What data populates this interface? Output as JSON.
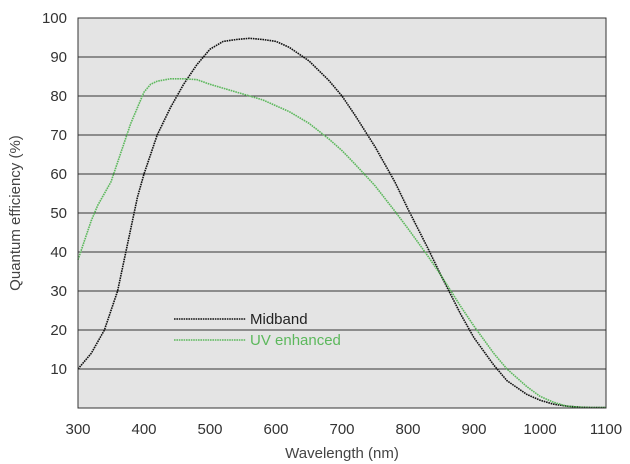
{
  "chart_data": {
    "type": "line",
    "title": "",
    "xlabel": "Wavelength (nm)",
    "ylabel": "Quantum efficiency (%)",
    "xlim": [
      300,
      1100
    ],
    "ylim": [
      0,
      100
    ],
    "x_ticks": [
      300,
      400,
      500,
      600,
      700,
      800,
      900,
      1000,
      1100
    ],
    "y_ticks": [
      10,
      20,
      30,
      40,
      50,
      60,
      70,
      80,
      90,
      100
    ],
    "grid": "horizontal",
    "plot_background": "#e4e4e4",
    "legend_position": "lower-left",
    "series": [
      {
        "name": "Midband",
        "color": "#111111",
        "x": [
          300,
          320,
          340,
          360,
          370,
          380,
          390,
          400,
          410,
          420,
          440,
          460,
          480,
          500,
          520,
          540,
          560,
          580,
          600,
          620,
          650,
          680,
          700,
          720,
          750,
          780,
          800,
          830,
          850,
          880,
          900,
          930,
          950,
          980,
          1000,
          1020,
          1040,
          1060,
          1080,
          1100
        ],
        "y": [
          10,
          14,
          20,
          30,
          38,
          46,
          54,
          60,
          65,
          70,
          77,
          83,
          88,
          92,
          94,
          94.5,
          94.8,
          94.5,
          94,
          92.5,
          89,
          84,
          80,
          75,
          67,
          58,
          51,
          41,
          34,
          24,
          18,
          11,
          7,
          3.5,
          2,
          1,
          0.5,
          0.2,
          0.1,
          0.1
        ]
      },
      {
        "name": "UV enhanced",
        "color": "#5cb85c",
        "x": [
          300,
          310,
          320,
          330,
          340,
          350,
          360,
          370,
          380,
          390,
          400,
          410,
          420,
          440,
          460,
          480,
          500,
          520,
          540,
          560,
          580,
          600,
          620,
          650,
          680,
          700,
          720,
          750,
          780,
          800,
          830,
          850,
          880,
          900,
          930,
          950,
          980,
          1000,
          1020,
          1040,
          1060,
          1080,
          1100
        ],
        "y": [
          38,
          43,
          48,
          52,
          55,
          58,
          63,
          68,
          73,
          77,
          81,
          83,
          83.8,
          84.4,
          84.4,
          84.2,
          83,
          82,
          81,
          80,
          79,
          77.5,
          76,
          73,
          69,
          66,
          62.5,
          57,
          50.5,
          46,
          39,
          34,
          26,
          21,
          14,
          10,
          5.5,
          3,
          1.5,
          0.5,
          0.2,
          0.1,
          0.1
        ]
      }
    ]
  }
}
